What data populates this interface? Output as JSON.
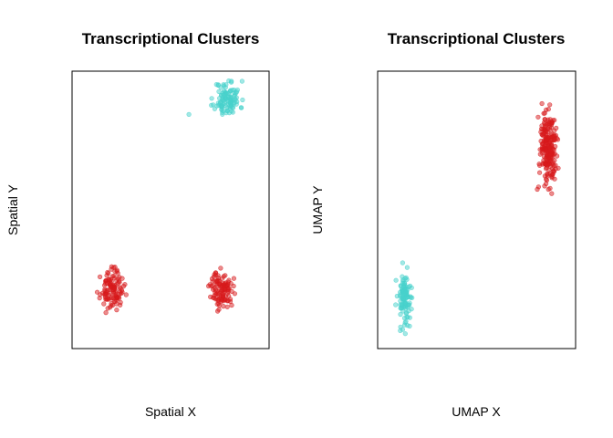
{
  "chart_data": [
    {
      "type": "scatter",
      "title": "Transcriptional Clusters",
      "xlabel": "Spatial X",
      "ylabel": "Spatial Y",
      "xlim": [
        0,
        10
      ],
      "ylim": [
        0,
        10
      ],
      "grid": false,
      "legend": "none",
      "series": [
        {
          "color": "#48D1CC",
          "clusters": [
            {
              "center": [
                8.1,
                9.3
              ],
              "spread": [
                0.9,
                0.9
              ],
              "count": 110,
              "seed": 11
            }
          ],
          "points": [
            [
              6.0,
              8.7
            ]
          ]
        },
        {
          "color": "#D7191C",
          "clusters": [
            {
              "center": [
                1.8,
                1.9
              ],
              "spread": [
                0.8,
                0.9
              ],
              "count": 115,
              "seed": 23
            },
            {
              "center": [
                7.8,
                1.9
              ],
              "spread": [
                0.8,
                0.9
              ],
              "count": 110,
              "seed": 37
            }
          ],
          "points": []
        }
      ]
    },
    {
      "type": "scatter",
      "title": "Transcriptional Clusters",
      "xlabel": "UMAP X",
      "ylabel": "UMAP Y",
      "xlim": [
        0,
        10
      ],
      "ylim": [
        0,
        10
      ],
      "grid": false,
      "legend": "none",
      "series": [
        {
          "color": "#48D1CC",
          "clusters": [
            {
              "center": [
                1.1,
                1.6
              ],
              "spread": [
                0.5,
                1.4
              ],
              "count": 110,
              "seed": 53
            }
          ],
          "points": []
        },
        {
          "color": "#D7191C",
          "clusters": [
            {
              "center": [
                8.9,
                7.4
              ],
              "spread": [
                0.65,
                1.9
              ],
              "count": 225,
              "seed": 71
            }
          ],
          "points": []
        }
      ]
    }
  ]
}
